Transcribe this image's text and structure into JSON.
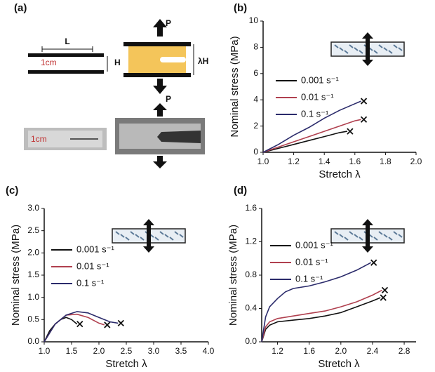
{
  "diagram": {
    "panel": "(a)",
    "texts": [
      "L",
      "H",
      "1cm",
      "P",
      "λH",
      "P",
      "1cm"
    ]
  },
  "chart_data": [
    {
      "type": "line",
      "panel": "(b)",
      "x_label": "Stretch λ",
      "y_label": "Nominal stress (MPa)",
      "xlim": [
        1.0,
        2.0
      ],
      "xticks": [
        {
          "value": 1.0,
          "label": "1.0"
        },
        1.2,
        1.4,
        1.6,
        1.8,
        {
          "value": 2.0,
          "label": "2.0"
        }
      ],
      "ylim": [
        0,
        10
      ],
      "yticks": [
        0,
        2,
        4,
        6,
        8,
        10
      ],
      "series": [
        {
          "name": "0.001 s⁻¹",
          "color": "#111111",
          "x": [
            1.0,
            1.1,
            1.2,
            1.3,
            1.4,
            1.5,
            1.55
          ],
          "values": [
            0,
            0.3,
            0.6,
            0.9,
            1.2,
            1.5,
            1.6
          ]
        },
        {
          "name": "0.01 s⁻¹",
          "color": "#b0404f",
          "x": [
            1.0,
            1.1,
            1.2,
            1.3,
            1.4,
            1.5,
            1.6,
            1.64
          ],
          "values": [
            0,
            0.4,
            0.8,
            1.2,
            1.6,
            2.0,
            2.4,
            2.5
          ]
        },
        {
          "name": "0.1 s⁻¹",
          "color": "#2b2b6b",
          "x": [
            1.0,
            1.1,
            1.2,
            1.3,
            1.4,
            1.5,
            1.6,
            1.64
          ],
          "values": [
            0,
            0.6,
            1.3,
            1.9,
            2.6,
            3.2,
            3.7,
            3.9
          ]
        }
      ]
    },
    {
      "type": "line",
      "panel": "(c)",
      "x_label": "Stretch λ",
      "y_label": "Nominal stress (MPa)",
      "xlim": [
        1.0,
        4.0
      ],
      "xticks": [
        {
          "value": 1.0,
          "label": "1.0"
        },
        1.5,
        {
          "value": 2.0,
          "label": "2.0"
        },
        2.5,
        {
          "value": 3.0,
          "label": "3.0"
        },
        3.5,
        {
          "value": 4.0,
          "label": "4.0"
        }
      ],
      "ylim": [
        0,
        3.0
      ],
      "yticks": [
        {
          "value": 0,
          "label": "0.0"
        },
        0.5,
        {
          "value": 1.0,
          "label": "1.0"
        },
        1.5,
        {
          "value": 2.0,
          "label": "2.0"
        },
        2.5,
        {
          "value": 3.0,
          "label": "3.0"
        }
      ],
      "series": [
        {
          "name": "0.001 s⁻¹",
          "color": "#111111",
          "x": [
            1.0,
            1.1,
            1.2,
            1.3,
            1.4,
            1.5,
            1.6
          ],
          "values": [
            0,
            0.25,
            0.4,
            0.5,
            0.55,
            0.5,
            0.4
          ]
        },
        {
          "name": "0.01 s⁻¹",
          "color": "#b0404f",
          "x": [
            1.0,
            1.2,
            1.4,
            1.6,
            1.8,
            2.0,
            2.1
          ],
          "values": [
            0,
            0.4,
            0.6,
            0.62,
            0.55,
            0.42,
            0.38
          ]
        },
        {
          "name": "0.1 s⁻¹",
          "color": "#2b2b6b",
          "x": [
            1.0,
            1.2,
            1.4,
            1.6,
            1.8,
            2.0,
            2.2,
            2.35
          ],
          "values": [
            0,
            0.4,
            0.6,
            0.68,
            0.65,
            0.55,
            0.45,
            0.42
          ]
        }
      ]
    },
    {
      "type": "line",
      "panel": "(d)",
      "x_label": "Stretch λ",
      "y_label": "Nominal stress (MPa)",
      "xlim": [
        1.0,
        2.95
      ],
      "xticks": [
        1.2,
        1.6,
        {
          "value": 2.0,
          "label": "2.0"
        },
        2.4,
        2.8
      ],
      "ylim": [
        0,
        1.6
      ],
      "yticks": [
        {
          "value": 0,
          "label": "0.0"
        },
        0.4,
        0.8,
        1.2,
        1.6
      ],
      "series": [
        {
          "name": "0.001 s⁻¹",
          "color": "#111111",
          "x": [
            1.0,
            1.05,
            1.1,
            1.2,
            1.4,
            1.6,
            1.8,
            2.0,
            2.2,
            2.4,
            2.5
          ],
          "values": [
            0,
            0.15,
            0.2,
            0.24,
            0.26,
            0.28,
            0.31,
            0.35,
            0.42,
            0.49,
            0.53
          ]
        },
        {
          "name": "0.01 s⁻¹",
          "color": "#b0404f",
          "x": [
            1.0,
            1.05,
            1.1,
            1.2,
            1.4,
            1.6,
            1.8,
            2.0,
            2.2,
            2.4,
            2.52
          ],
          "values": [
            0,
            0.18,
            0.24,
            0.28,
            0.31,
            0.34,
            0.37,
            0.42,
            0.48,
            0.56,
            0.62
          ]
        },
        {
          "name": "0.1 s⁻¹",
          "color": "#2b2b6b",
          "x": [
            1.0,
            1.05,
            1.1,
            1.2,
            1.3,
            1.4,
            1.6,
            1.8,
            2.0,
            2.2,
            2.38
          ],
          "values": [
            0,
            0.3,
            0.42,
            0.52,
            0.6,
            0.64,
            0.67,
            0.72,
            0.78,
            0.86,
            0.95
          ]
        }
      ]
    }
  ]
}
